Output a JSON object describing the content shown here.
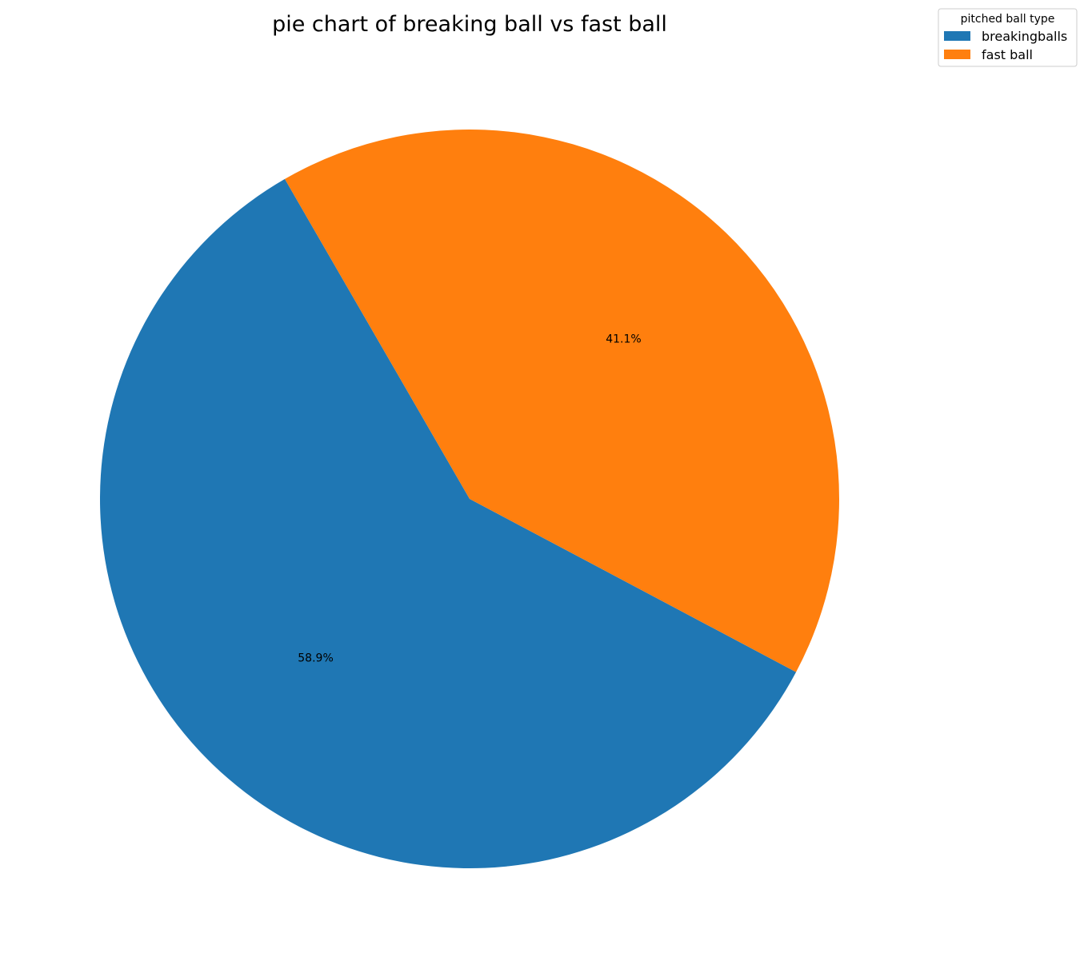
{
  "chart_data": {
    "type": "pie",
    "title": "pie chart of breaking ball vs fast ball",
    "legend": {
      "title": "pitched ball type",
      "placement": "top-right"
    },
    "slices": [
      {
        "label": "breakingballs",
        "value": 58.9,
        "pct_label": "58.9%",
        "color": "#1f77b4"
      },
      {
        "label": "fast ball",
        "value": 41.1,
        "pct_label": "41.1%",
        "color": "#ff7f0e"
      }
    ],
    "start_angle_deg": 120,
    "direction": "counterclockwise"
  }
}
